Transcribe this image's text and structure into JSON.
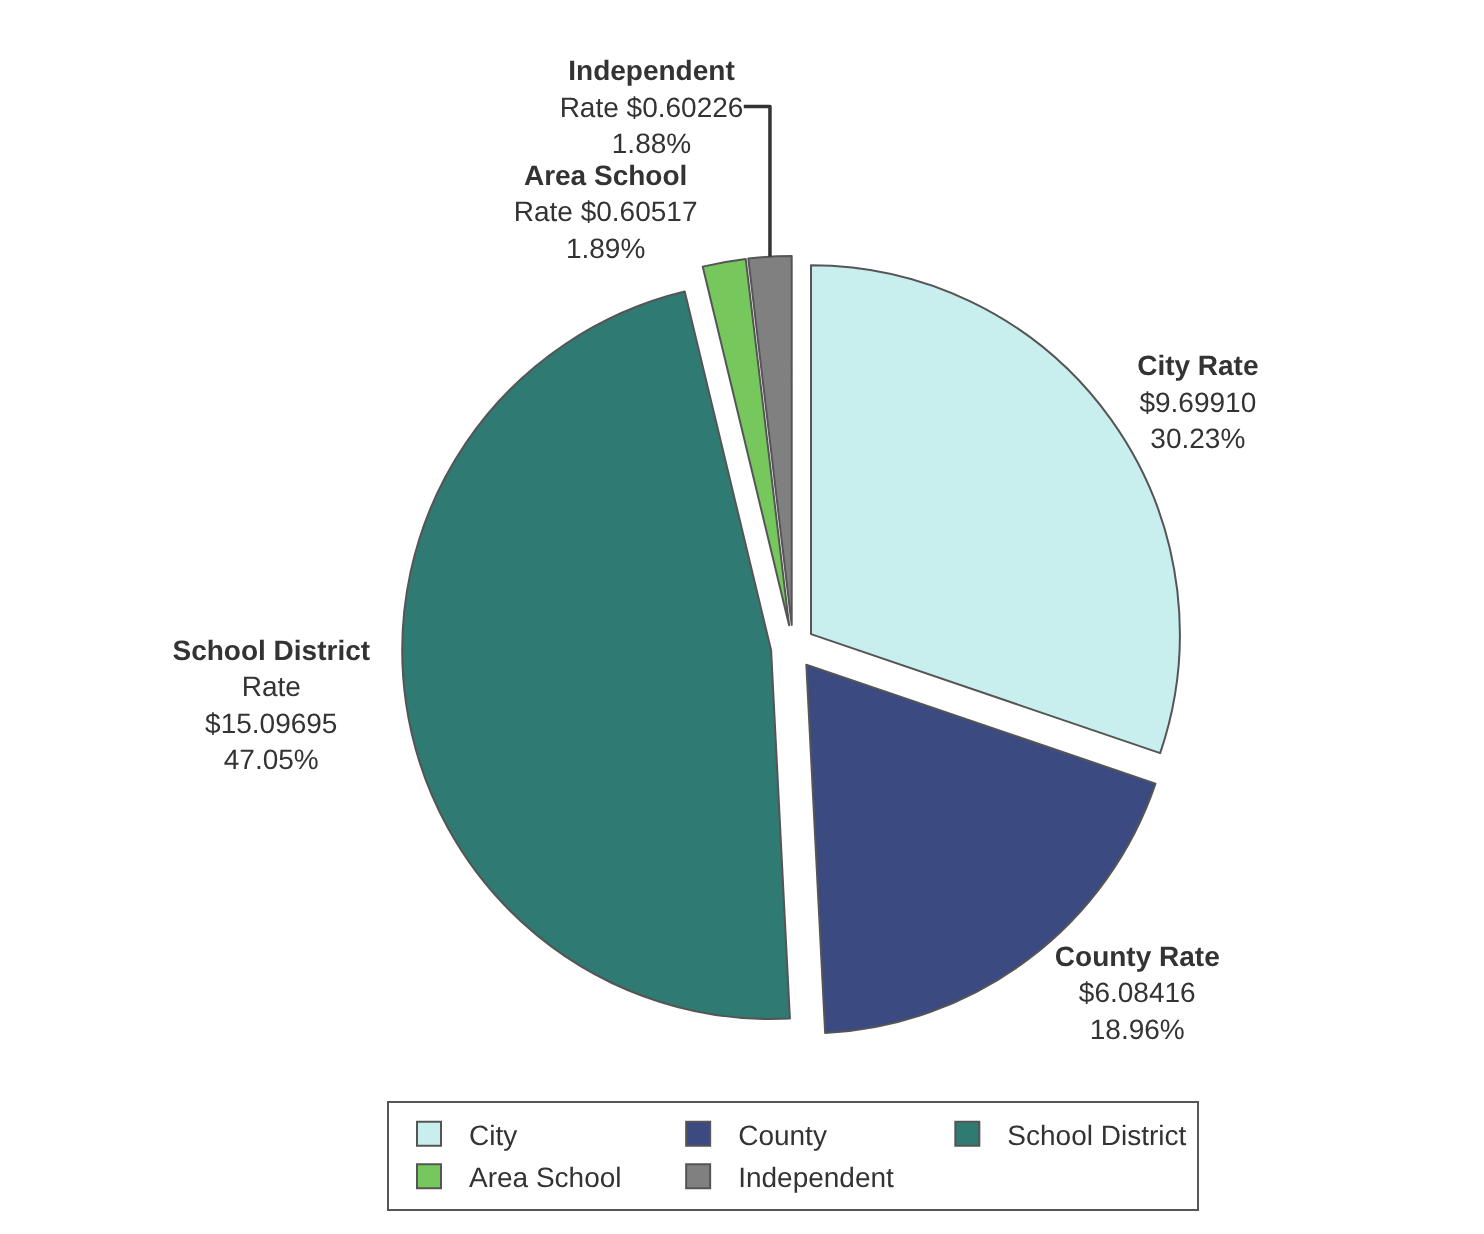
{
  "chart_data": {
    "type": "pie",
    "categories": [
      "City",
      "County",
      "School District",
      "Area School",
      "Independent"
    ],
    "values": [
      9.6991,
      6.08416,
      15.09695,
      0.60517,
      0.60226
    ],
    "colors": [
      "#c8eeee",
      "#3b4b82",
      "#2f7a72",
      "#76c85c",
      "#808080"
    ],
    "value_labels": [
      "City Rate\n$9.69910\n30.23%",
      "County Rate\n$6.08416\n18.96%",
      "School District\nRate\n$15.09695\n47.05%",
      "Area School\nRate $0.60517\n1.89%",
      "Independent\nRate $0.60226\n1.88%"
    ],
    "legend": "bottom"
  }
}
